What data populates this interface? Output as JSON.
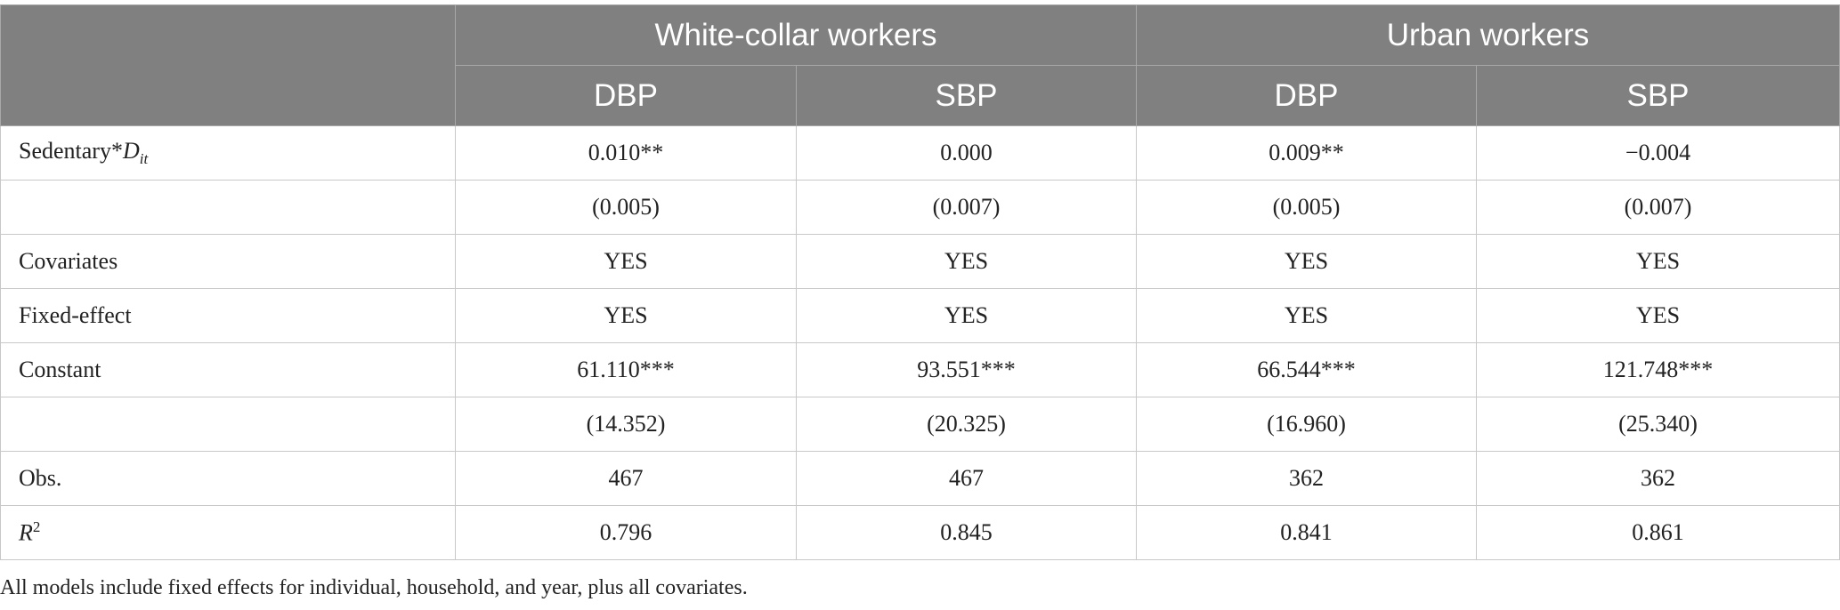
{
  "table": {
    "groups": [
      "White-collar workers",
      "Urban workers"
    ],
    "subheaders": [
      "DBP",
      "SBP",
      "DBP",
      "SBP"
    ],
    "rows": [
      {
        "label": {
          "main": "Sedentary*",
          "var": "D",
          "sub": "it"
        },
        "cells": [
          "0.010**",
          "0.000",
          "0.009**",
          "−0.004"
        ]
      },
      {
        "label": null,
        "cells": [
          "(0.005)",
          "(0.007)",
          "(0.005)",
          "(0.007)"
        ]
      },
      {
        "label": {
          "main": "Covariates"
        },
        "cells": [
          "YES",
          "YES",
          "YES",
          "YES"
        ]
      },
      {
        "label": {
          "main": "Fixed-effect"
        },
        "cells": [
          "YES",
          "YES",
          "YES",
          "YES"
        ]
      },
      {
        "label": {
          "main": "Constant"
        },
        "cells": [
          "61.110***",
          "93.551***",
          "66.544***",
          "121.748***"
        ]
      },
      {
        "label": null,
        "cells": [
          "(14.352)",
          "(20.325)",
          "(16.960)",
          "(25.340)"
        ]
      },
      {
        "label": {
          "main": "Obs."
        },
        "cells": [
          "467",
          "467",
          "362",
          "362"
        ]
      },
      {
        "label": {
          "var": "R",
          "sup": "2"
        },
        "cells": [
          "0.796",
          "0.845",
          "0.841",
          "0.861"
        ]
      }
    ]
  },
  "footnote": "All models include fixed effects for individual, household, and year, plus all covariates."
}
